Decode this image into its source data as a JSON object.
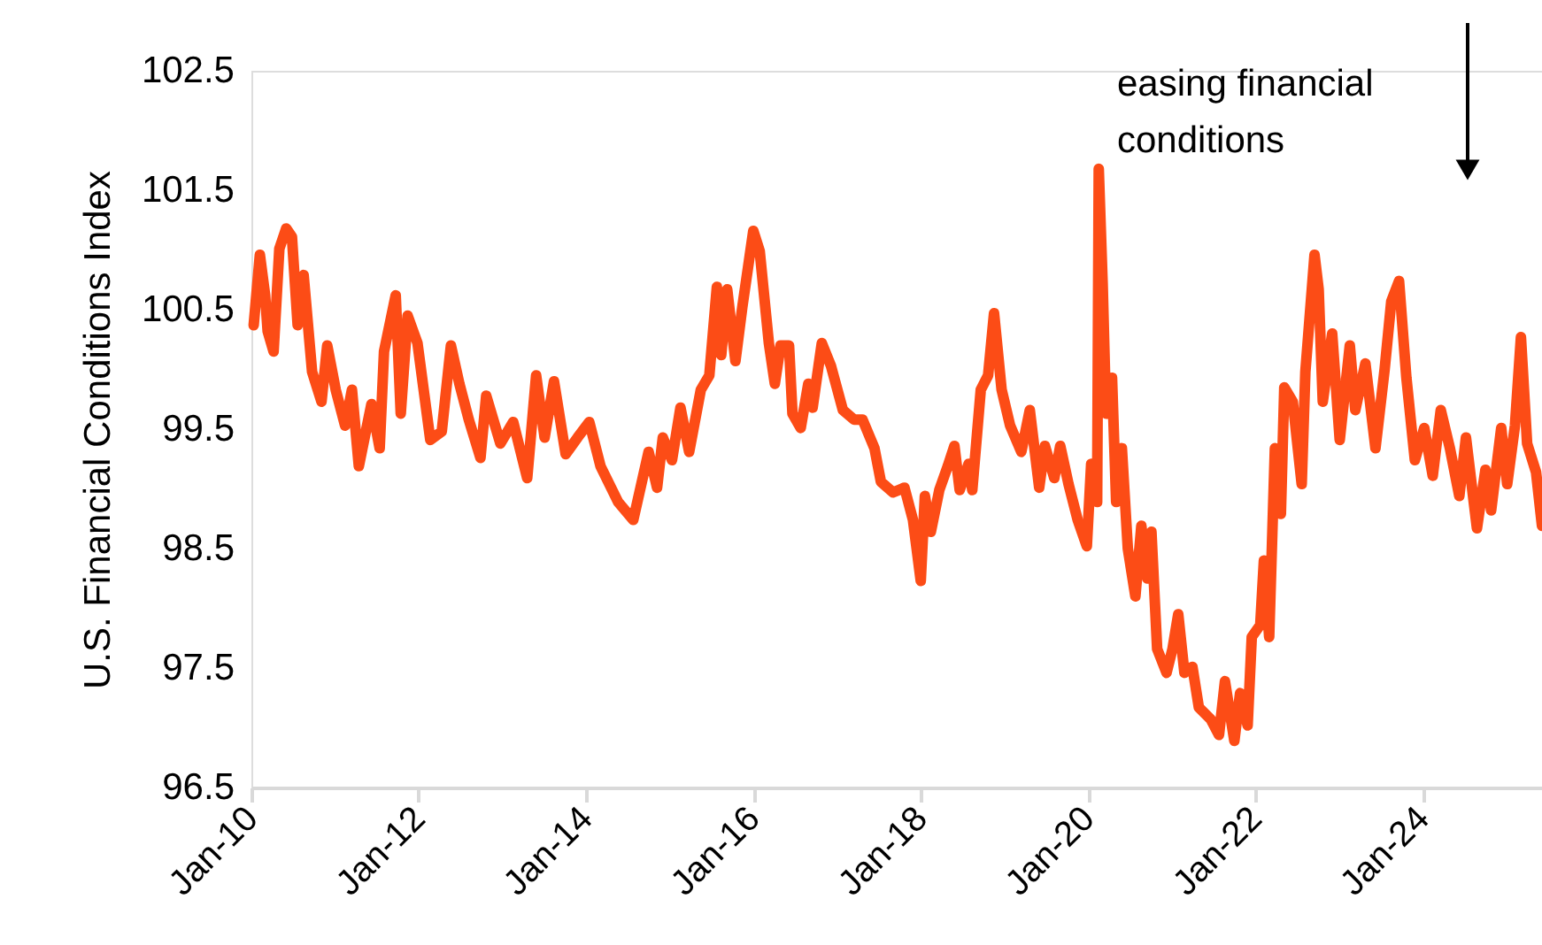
{
  "chart_data": {
    "type": "line",
    "ylabel": "U.S. Financial Conditions Index",
    "annotations": [
      "easing financial conditions"
    ],
    "xlim": [
      "2010-01-01",
      "2025-06-05"
    ],
    "xticks": [
      {
        "value": "2010-01-01",
        "label": "Jan-10"
      },
      {
        "value": "2012-01-01",
        "label": "Jan-12"
      },
      {
        "value": "2014-01-01",
        "label": "Jan-14"
      },
      {
        "value": "2016-01-01",
        "label": "Jan-16"
      },
      {
        "value": "2018-01-01",
        "label": "Jan-18"
      },
      {
        "value": "2020-01-01",
        "label": "Jan-20"
      },
      {
        "value": "2022-01-01",
        "label": "Jan-22"
      },
      {
        "value": "2024-01-01",
        "label": "Jan-24"
      }
    ],
    "ylim": [
      96.5,
      102.5
    ],
    "yticks": [
      96.5,
      97.5,
      98.5,
      99.5,
      100.5,
      101.5,
      102.5
    ],
    "grid": false,
    "marker": "none",
    "line_style": "solid",
    "series": [
      {
        "color": "#fc4c16",
        "x": [
          "2010-01-11",
          "2010-02-07",
          "2010-03-02",
          "2010-03-13",
          "2010-04-08",
          "2010-05-03",
          "2010-06-02",
          "2010-06-27",
          "2010-07-22",
          "2010-08-17",
          "2010-09-23",
          "2010-11-03",
          "2010-11-28",
          "2011-01-04",
          "2011-02-14",
          "2011-03-16",
          "2011-04-15",
          "2011-06-09",
          "2011-07-15",
          "2011-08-03",
          "2011-09-23",
          "2011-10-15",
          "2011-11-14",
          "2011-12-27",
          "2012-02-21",
          "2012-04-11",
          "2012-05-21",
          "2012-06-27",
          "2012-08-07",
          "2012-09-27",
          "2012-10-22",
          "2012-12-23",
          "2013-02-17",
          "2013-04-19",
          "2013-05-28",
          "2013-07-04",
          "2013-08-14",
          "2013-10-04",
          "2013-11-25",
          "2014-01-15",
          "2014-03-05",
          "2014-05-21",
          "2014-07-26",
          "2014-10-01",
          "2014-11-07",
          "2014-12-02",
          "2015-01-11",
          "2015-02-17",
          "2015-03-27",
          "2015-05-17",
          "2015-06-23",
          "2015-07-26",
          "2015-08-14",
          "2015-09-09",
          "2015-10-15",
          "2015-11-14",
          "2016-01-01",
          "2016-01-29",
          "2016-03-09",
          "2016-04-04",
          "2016-04-29",
          "2016-06-05",
          "2016-06-20",
          "2016-07-26",
          "2016-08-28",
          "2016-09-16",
          "2016-10-26",
          "2016-12-05",
          "2017-01-26",
          "2017-03-16",
          "2017-04-22",
          "2017-06-13",
          "2017-07-11",
          "2017-09-02",
          "2017-10-22",
          "2017-11-28",
          "2018-01-01",
          "2018-01-19",
          "2018-02-14",
          "2018-03-23",
          "2018-04-29",
          "2018-05-28",
          "2018-06-20",
          "2018-07-29",
          "2018-08-14",
          "2018-09-20",
          "2018-10-22",
          "2018-11-17",
          "2018-12-20",
          "2019-01-26",
          "2019-03-16",
          "2019-04-22",
          "2019-06-02",
          "2019-06-27",
          "2019-08-07",
          "2019-09-02",
          "2019-10-08",
          "2019-11-17",
          "2019-12-27",
          "2020-01-15",
          "2020-02-10",
          "2020-02-17",
          "2020-03-05",
          "2020-03-20",
          "2020-04-15",
          "2020-05-03",
          "2020-05-28",
          "2020-06-23",
          "2020-07-26",
          "2020-08-21",
          "2020-09-16",
          "2020-10-04",
          "2020-10-29",
          "2020-12-09",
          "2021-01-04",
          "2021-01-29",
          "2021-02-25",
          "2021-04-01",
          "2021-04-29",
          "2021-06-20",
          "2021-07-26",
          "2021-08-21",
          "2021-10-01",
          "2021-10-26",
          "2021-11-28",
          "2021-12-16",
          "2022-01-22",
          "2022-02-07",
          "2022-03-02",
          "2022-03-27",
          "2022-04-22",
          "2022-05-07",
          "2022-06-13",
          "2022-07-22",
          "2022-08-07",
          "2022-09-16",
          "2022-10-04",
          "2022-10-22",
          "2022-12-02",
          "2023-01-04",
          "2023-02-17",
          "2023-03-13",
          "2023-04-26",
          "2023-06-09",
          "2023-07-19",
          "2023-08-17",
          "2023-09-20",
          "2023-10-22",
          "2023-11-28",
          "2024-01-08",
          "2024-02-14",
          "2024-03-20",
          "2024-04-29",
          "2024-06-09",
          "2024-07-08",
          "2024-08-25",
          "2024-10-01",
          "2024-10-26",
          "2024-12-09",
          "2025-01-04",
          "2025-02-07",
          "2025-03-05",
          "2025-04-01",
          "2025-05-10",
          "2025-06-05"
        ],
        "values": [
          100.37,
          100.96,
          100.62,
          100.32,
          100.15,
          101.01,
          101.18,
          101.11,
          100.37,
          100.79,
          99.98,
          99.73,
          100.2,
          99.83,
          99.53,
          99.83,
          99.19,
          99.71,
          99.34,
          100.15,
          100.62,
          99.63,
          100.45,
          100.22,
          99.41,
          99.48,
          100.2,
          99.88,
          99.58,
          99.26,
          99.78,
          99.38,
          99.56,
          99.09,
          99.95,
          99.43,
          99.9,
          99.29,
          99.43,
          99.56,
          99.19,
          98.89,
          98.74,
          99.31,
          99.01,
          99.43,
          99.24,
          99.68,
          99.31,
          99.83,
          99.95,
          100.69,
          100.12,
          100.67,
          100.07,
          100.52,
          101.16,
          100.99,
          100.22,
          99.88,
          100.2,
          100.2,
          99.63,
          99.51,
          99.88,
          99.68,
          100.22,
          100.03,
          99.66,
          99.58,
          99.58,
          99.34,
          99.06,
          98.97,
          99.01,
          98.74,
          98.23,
          98.94,
          98.64,
          98.99,
          99.19,
          99.36,
          98.99,
          99.21,
          98.99,
          99.83,
          99.95,
          100.47,
          99.83,
          99.53,
          99.31,
          99.66,
          99.01,
          99.36,
          99.09,
          99.36,
          99.04,
          98.74,
          98.52,
          99.21,
          98.89,
          101.68,
          100.72,
          99.63,
          99.93,
          98.89,
          99.34,
          98.5,
          98.1,
          98.69,
          98.25,
          98.64,
          97.66,
          97.46,
          97.66,
          97.95,
          97.46,
          97.51,
          97.17,
          97.07,
          96.94,
          97.39,
          96.89,
          97.29,
          97.02,
          97.76,
          97.86,
          98.4,
          97.76,
          99.34,
          98.79,
          99.85,
          99.73,
          99.04,
          99.98,
          100.96,
          100.67,
          99.73,
          100.3,
          99.41,
          100.2,
          99.66,
          100.05,
          99.34,
          100.0,
          100.57,
          100.74,
          99.93,
          99.24,
          99.51,
          99.11,
          99.66,
          99.34,
          98.94,
          99.43,
          98.67,
          99.16,
          98.82,
          99.51,
          99.04,
          99.53,
          100.27,
          99.38,
          99.14,
          98.69
        ]
      }
    ]
  }
}
